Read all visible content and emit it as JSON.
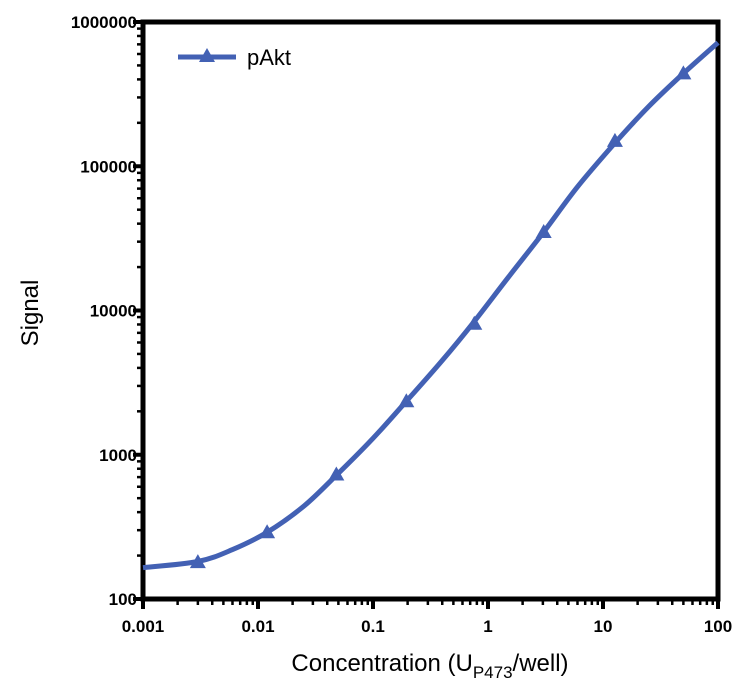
{
  "chart_data": {
    "type": "line",
    "xlabel": "Concentration (U",
    "xlabel_sub": "P473",
    "xlabel_suffix": "/well)",
    "ylabel": "Signal",
    "x_scale": "log",
    "y_scale": "log",
    "xlim": [
      0.001,
      100
    ],
    "ylim": [
      100,
      1000000
    ],
    "x_ticks": [
      {
        "value": 0.001,
        "label": "0.001"
      },
      {
        "value": 0.01,
        "label": "0.01"
      },
      {
        "value": 0.1,
        "label": "0.1"
      },
      {
        "value": 1,
        "label": "1"
      },
      {
        "value": 10,
        "label": "10"
      },
      {
        "value": 100,
        "label": "100"
      }
    ],
    "y_ticks": [
      {
        "value": 100,
        "label": "100"
      },
      {
        "value": 1000,
        "label": "1000"
      },
      {
        "value": 10000,
        "label": "10000"
      },
      {
        "value": 100000,
        "label": "100000"
      },
      {
        "value": 1000000,
        "label": "1000000"
      }
    ],
    "grid": false,
    "legend_position": "top-left",
    "series": [
      {
        "name": "pAkt",
        "color": "#4361b4",
        "marker": "triangle",
        "points": [
          {
            "x": 0.003,
            "y": 180
          },
          {
            "x": 0.012,
            "y": 290
          },
          {
            "x": 0.048,
            "y": 730
          },
          {
            "x": 0.195,
            "y": 2350
          },
          {
            "x": 0.76,
            "y": 8100
          },
          {
            "x": 3.05,
            "y": 35000
          },
          {
            "x": 12.7,
            "y": 150000
          },
          {
            "x": 50,
            "y": 440000
          }
        ],
        "curve": [
          {
            "x": 0.001,
            "y": 165
          },
          {
            "x": 0.003,
            "y": 182
          },
          {
            "x": 0.006,
            "y": 220
          },
          {
            "x": 0.012,
            "y": 290
          },
          {
            "x": 0.025,
            "y": 440
          },
          {
            "x": 0.048,
            "y": 720
          },
          {
            "x": 0.1,
            "y": 1300
          },
          {
            "x": 0.195,
            "y": 2350
          },
          {
            "x": 0.4,
            "y": 4500
          },
          {
            "x": 0.76,
            "y": 8400
          },
          {
            "x": 1.5,
            "y": 17000
          },
          {
            "x": 3.05,
            "y": 35000
          },
          {
            "x": 6,
            "y": 72000
          },
          {
            "x": 12.7,
            "y": 145000
          },
          {
            "x": 25,
            "y": 260000
          },
          {
            "x": 50,
            "y": 440000
          },
          {
            "x": 100,
            "y": 720000
          }
        ]
      }
    ]
  }
}
